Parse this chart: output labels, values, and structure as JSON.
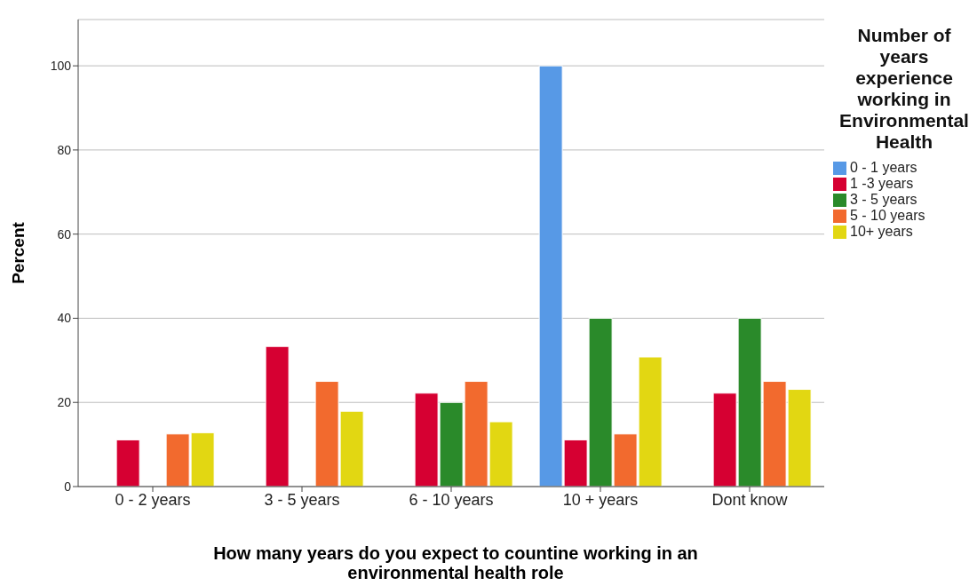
{
  "chart_data": {
    "type": "bar",
    "xlabel": "How many years do you expect to countine working in an environmental health role",
    "ylabel": "Percent",
    "legend_title": "Number of years experience working in Environmental Health",
    "categories": [
      "0 - 2 years",
      "3 - 5 years",
      "6 - 10 years",
      "10 + years",
      "Dont know"
    ],
    "series": [
      {
        "name": "0 - 1 years",
        "color": "#5799e6",
        "values": [
          null,
          null,
          null,
          100,
          null
        ]
      },
      {
        "name": "1 -3 years",
        "color": "#d60032",
        "values": [
          11.1,
          33.3,
          22.2,
          11.1,
          22.2
        ]
      },
      {
        "name": "3 - 5 years",
        "color": "#2a8a2a",
        "values": [
          null,
          null,
          20,
          40,
          40
        ]
      },
      {
        "name": "5 - 10 years",
        "color": "#f26a2e",
        "values": [
          12.5,
          25,
          25,
          12.5,
          25
        ]
      },
      {
        "name": "10+ years",
        "color": "#e2d712",
        "values": [
          12.8,
          17.9,
          15.4,
          30.8,
          23.1
        ]
      }
    ],
    "ylim": [
      0,
      111
    ],
    "yticks": [
      0,
      20,
      40,
      60,
      80,
      100
    ],
    "grid": "y",
    "legend": "top right"
  }
}
